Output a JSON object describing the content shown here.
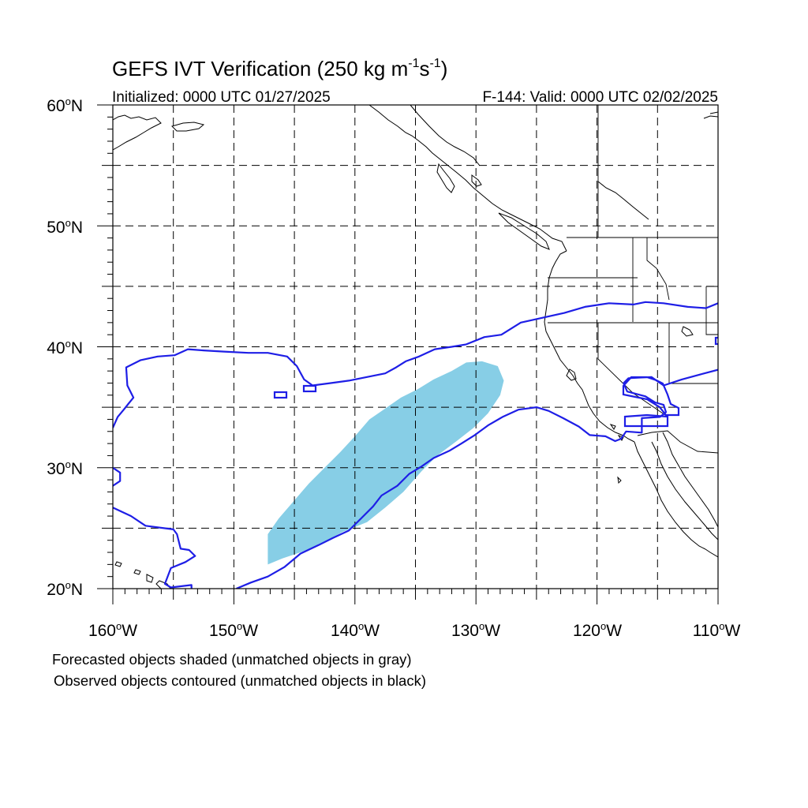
{
  "title_prefix": "GEFS IVT Verification (250 kg m",
  "title_sup1": "-1",
  "title_mid": "s",
  "title_sup2": "-1",
  "title_suffix": ")",
  "initialized": "Initialized: 0000 UTC 01/27/2025",
  "valid": "F-144: Valid: 0000 UTC 02/02/2025",
  "lat_labels": [
    "60",
    "50",
    "40",
    "30",
    "20"
  ],
  "lon_labels": [
    "160",
    "150",
    "140",
    "130",
    "120",
    "110"
  ],
  "lat_hemisphere": "N",
  "lon_hemisphere": "W",
  "degree_symbol": "o",
  "footnote_line1": "Forecasted objects shaded (unmatched objects in gray)",
  "footnote_line2": "Observed objects contoured (unmatched objects in black)",
  "map": {
    "lon_range": [
      -160,
      -110
    ],
    "lat_range": [
      20,
      60
    ],
    "grid_spacing_deg": 5,
    "grid_style": "dashed",
    "projection": "cylindrical equidistant"
  },
  "colors": {
    "forecast_fill": "#87CEE6",
    "observed_contour": "#1E1EE6",
    "coastline": "#000000",
    "grid": "#000000"
  },
  "forecast_object": {
    "label": "Forecasted object (matched)",
    "polygon_lonlat": [
      [
        -147.2,
        22.0
      ],
      [
        -146.0,
        22.5
      ],
      [
        -144.5,
        23.0
      ],
      [
        -142.8,
        23.7
      ],
      [
        -141.0,
        24.7
      ],
      [
        -139.0,
        25.5
      ],
      [
        -137.5,
        26.7
      ],
      [
        -136.0,
        28.0
      ],
      [
        -134.5,
        29.7
      ],
      [
        -133.2,
        31.0
      ],
      [
        -131.6,
        32.2
      ],
      [
        -130.2,
        33.3
      ],
      [
        -129.0,
        34.5
      ],
      [
        -128.0,
        36.0
      ],
      [
        -127.7,
        37.2
      ],
      [
        -128.2,
        38.4
      ],
      [
        -129.5,
        38.8
      ],
      [
        -130.8,
        38.7
      ],
      [
        -132.0,
        38.0
      ],
      [
        -133.5,
        37.3
      ],
      [
        -134.8,
        36.5
      ],
      [
        -136.2,
        35.8
      ],
      [
        -137.5,
        34.9
      ],
      [
        -138.8,
        34.0
      ],
      [
        -140.0,
        32.6
      ],
      [
        -141.2,
        31.3
      ],
      [
        -142.5,
        30.0
      ],
      [
        -143.8,
        28.7
      ],
      [
        -145.0,
        27.3
      ],
      [
        -146.3,
        25.8
      ],
      [
        -147.2,
        24.5
      ]
    ]
  },
  "observed_objects": [
    {
      "label": "Observed object (matched)",
      "lonlat": [
        [
          -160,
          26.7
        ],
        [
          -158.5,
          26.0
        ],
        [
          -157.3,
          25.2
        ],
        [
          -155.0,
          24.9
        ],
        [
          -154.7,
          24.5
        ],
        [
          -154.4,
          23.3
        ],
        [
          -153.7,
          23.2
        ],
        [
          -153.2,
          22.7
        ],
        [
          -154.0,
          22.2
        ],
        [
          -155.2,
          21.7
        ],
        [
          -155.7,
          20.4
        ],
        [
          -155.2,
          20.1
        ],
        [
          -153.5,
          20.3
        ],
        [
          -153.5,
          20.0
        ]
      ]
    },
    {
      "label": "Observed object (matched)",
      "lonlat": [
        [
          -149.8,
          20.0
        ],
        [
          -148.6,
          20.5
        ],
        [
          -147.2,
          21.0
        ],
        [
          -145.8,
          21.8
        ],
        [
          -144.5,
          22.9
        ],
        [
          -143.0,
          23.6
        ],
        [
          -141.8,
          24.2
        ],
        [
          -140.5,
          24.8
        ],
        [
          -139.5,
          25.8
        ],
        [
          -138.5,
          26.8
        ],
        [
          -137.8,
          27.7
        ],
        [
          -136.5,
          28.5
        ],
        [
          -135.5,
          29.5
        ],
        [
          -134.5,
          30.1
        ],
        [
          -133.5,
          30.8
        ],
        [
          -132.2,
          31.4
        ],
        [
          -131.2,
          32.0
        ],
        [
          -130.1,
          32.7
        ],
        [
          -129.0,
          33.5
        ],
        [
          -127.8,
          34.2
        ],
        [
          -126.5,
          34.8
        ],
        [
          -125.0,
          35.0
        ],
        [
          -124.0,
          34.7
        ],
        [
          -122.8,
          34.1
        ],
        [
          -121.5,
          33.4
        ],
        [
          -120.6,
          32.7
        ],
        [
          -119.3,
          32.6
        ],
        [
          -118.5,
          32.2
        ],
        [
          -118.0,
          32.4
        ],
        [
          -117.6,
          33.0
        ],
        [
          -116.3,
          32.9
        ],
        [
          -116.3,
          34.1
        ],
        [
          -114.8,
          34.2
        ],
        [
          -114.3,
          34.6
        ],
        [
          -114.5,
          35.2
        ],
        [
          -115.2,
          35.4
        ],
        [
          -116.0,
          35.9
        ],
        [
          -117.5,
          36.3
        ],
        [
          -117.8,
          37.0
        ],
        [
          -117.4,
          37.4
        ],
        [
          -115.5,
          37.5
        ],
        [
          -114.5,
          36.8
        ],
        [
          -113.0,
          37.3
        ],
        [
          -111.5,
          37.7
        ],
        [
          -110.0,
          38.1
        ]
      ]
    },
    {
      "label": "Observed object (matched)",
      "lonlat": [
        [
          -110.0,
          43.6
        ],
        [
          -111.0,
          43.2
        ],
        [
          -112.5,
          43.3
        ],
        [
          -114.5,
          43.6
        ],
        [
          -116.0,
          43.7
        ],
        [
          -117.0,
          43.5
        ],
        [
          -119.0,
          43.6
        ],
        [
          -121.0,
          43.3
        ],
        [
          -122.7,
          42.8
        ],
        [
          -124.5,
          42.4
        ],
        [
          -126.3,
          42.0
        ],
        [
          -127.9,
          41.0
        ],
        [
          -129.3,
          40.8
        ],
        [
          -130.8,
          40.2
        ],
        [
          -132.0,
          40.0
        ],
        [
          -133.4,
          39.8
        ],
        [
          -134.7,
          39.2
        ],
        [
          -135.8,
          38.8
        ],
        [
          -136.6,
          38.3
        ],
        [
          -137.5,
          37.8
        ],
        [
          -139.0,
          37.5
        ],
        [
          -140.5,
          37.2
        ],
        [
          -142.0,
          37.0
        ],
        [
          -143.5,
          36.8
        ],
        [
          -144.2,
          37.3
        ],
        [
          -144.8,
          38.4
        ],
        [
          -145.6,
          39.2
        ],
        [
          -147.2,
          39.5
        ],
        [
          -148.8,
          39.5
        ],
        [
          -150.8,
          39.6
        ],
        [
          -152.5,
          39.7
        ],
        [
          -153.8,
          39.8
        ],
        [
          -154.9,
          39.3
        ],
        [
          -156.3,
          39.2
        ],
        [
          -157.7,
          38.9
        ],
        [
          -158.9,
          38.3
        ],
        [
          -158.8,
          36.8
        ],
        [
          -158.3,
          35.8
        ],
        [
          -158.7,
          35.3
        ],
        [
          -159.1,
          34.8
        ],
        [
          -159.6,
          34.2
        ],
        [
          -160.0,
          33.3
        ]
      ]
    },
    {
      "label": "Observed object (matched)",
      "lonlat": [
        [
          -160.0,
          30.0
        ],
        [
          -159.4,
          29.6
        ],
        [
          -159.4,
          28.9
        ],
        [
          -160.0,
          28.5
        ]
      ]
    }
  ]
}
